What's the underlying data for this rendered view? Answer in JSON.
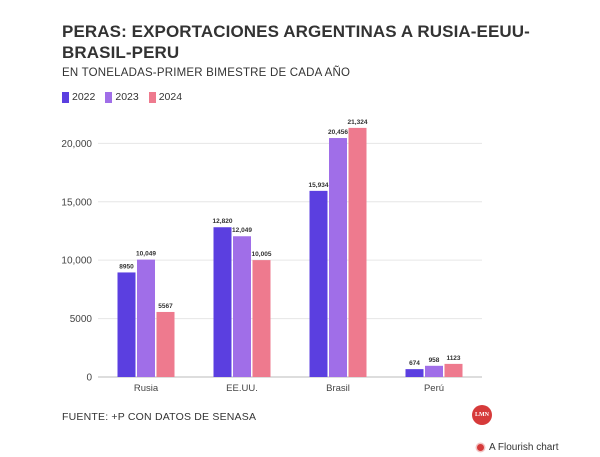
{
  "title": "PERAS: EXPORTACIONES ARGENTINAS A RUSIA-EEUU-BRASIL-PERU",
  "subtitle": "EN TONELADAS-PRIMER BIMESTRE DE CADA AÑO",
  "source": "FUENTE: +P CON DATOS DE SENASA",
  "logo_text": "LMN",
  "flourish_label": "A Flourish chart",
  "chart_data": {
    "type": "bar",
    "categories": [
      "Rusia",
      "EE.UU.",
      "Brasil",
      "Perú"
    ],
    "series": [
      {
        "name": "2022",
        "color": "#5b3fe0",
        "values": [
          8950,
          12820,
          15934,
          674
        ],
        "labels": [
          "8950",
          "12,820",
          "15,934",
          "674"
        ]
      },
      {
        "name": "2023",
        "color": "#a06ee8",
        "values": [
          10049,
          12049,
          20456,
          958
        ],
        "labels": [
          "10,049",
          "12,049",
          "20,456",
          "958"
        ]
      },
      {
        "name": "2024",
        "color": "#ee7a8e",
        "values": [
          5567,
          10005,
          21324,
          1123
        ],
        "labels": [
          "5567",
          "10,005",
          "21,324",
          "1123"
        ]
      }
    ],
    "yticks": [
      0,
      5000,
      10000,
      15000,
      20000
    ],
    "ytick_labels": [
      "0",
      "5000",
      "10,000",
      "15,000",
      "20,000"
    ],
    "ylim": [
      0,
      22000
    ],
    "grid": true,
    "legend_position": "top-left"
  }
}
